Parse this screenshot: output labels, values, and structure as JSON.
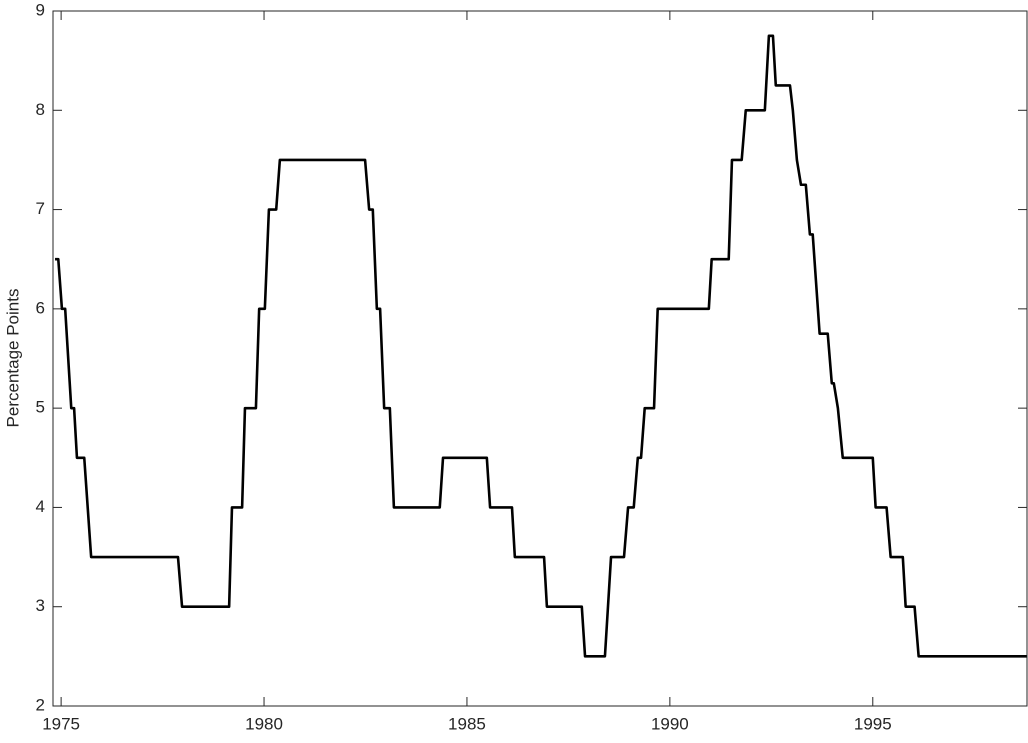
{
  "chart_data": {
    "type": "line",
    "y_label": "Percentage Points",
    "x": [
      1974.85,
      1974.93,
      1975.02,
      1975.1,
      1975.25,
      1975.32,
      1975.39,
      1975.57,
      1975.74,
      1977.88,
      1977.98,
      1979.14,
      1979.21,
      1979.46,
      1979.53,
      1979.8,
      1979.88,
      1980.02,
      1980.12,
      1980.3,
      1980.39,
      1982.49,
      1982.59,
      1982.68,
      1982.78,
      1982.86,
      1982.96,
      1983.1,
      1983.2,
      1984.33,
      1984.41,
      1985.49,
      1985.57,
      1986.11,
      1986.18,
      1986.9,
      1986.97,
      1987.83,
      1987.91,
      1988.4,
      1988.55,
      1988.87,
      1988.97,
      1989.11,
      1989.21,
      1989.29,
      1989.38,
      1989.61,
      1989.7,
      1990.96,
      1991.03,
      1991.45,
      1991.53,
      1991.77,
      1991.87,
      1992.34,
      1992.44,
      1992.54,
      1992.61,
      1992.96,
      1993.03,
      1993.13,
      1993.23,
      1993.35,
      1993.45,
      1993.52,
      1993.69,
      1993.89,
      1993.99,
      1994.04,
      1994.14,
      1994.26,
      1995.0,
      1995.07,
      1995.34,
      1995.44,
      1995.74,
      1995.81,
      1996.03,
      1996.13,
      1998.79
    ],
    "series": [
      {
        "color": "#000000",
        "values": [
          6.5,
          6.5,
          6.0,
          6.0,
          5.0,
          5.0,
          4.5,
          4.5,
          3.5,
          3.5,
          3.0,
          3.0,
          4.0,
          4.0,
          5.0,
          5.0,
          6.0,
          6.0,
          7.0,
          7.0,
          7.5,
          7.5,
          7.0,
          7.0,
          6.0,
          6.0,
          5.0,
          5.0,
          4.0,
          4.0,
          4.5,
          4.5,
          4.0,
          4.0,
          3.5,
          3.5,
          3.0,
          3.0,
          2.5,
          2.5,
          3.5,
          3.5,
          4.0,
          4.0,
          4.5,
          4.5,
          5.0,
          5.0,
          6.0,
          6.0,
          6.5,
          6.5,
          7.5,
          7.5,
          8.0,
          8.0,
          8.75,
          8.75,
          8.25,
          8.25,
          8.0,
          7.5,
          7.25,
          7.25,
          6.75,
          6.75,
          5.75,
          5.75,
          5.25,
          5.25,
          5.0,
          4.5,
          4.5,
          4.0,
          4.0,
          3.5,
          3.5,
          3.0,
          3.0,
          2.5,
          2.5
        ]
      }
    ],
    "xlim": [
      1974.8,
      1998.8
    ],
    "xticks": [
      1975,
      1980,
      1985,
      1990,
      1995
    ],
    "ylim": [
      2,
      9
    ],
    "yticks": [
      2,
      3,
      4,
      5,
      6,
      7,
      8,
      9
    ],
    "grid": false
  }
}
